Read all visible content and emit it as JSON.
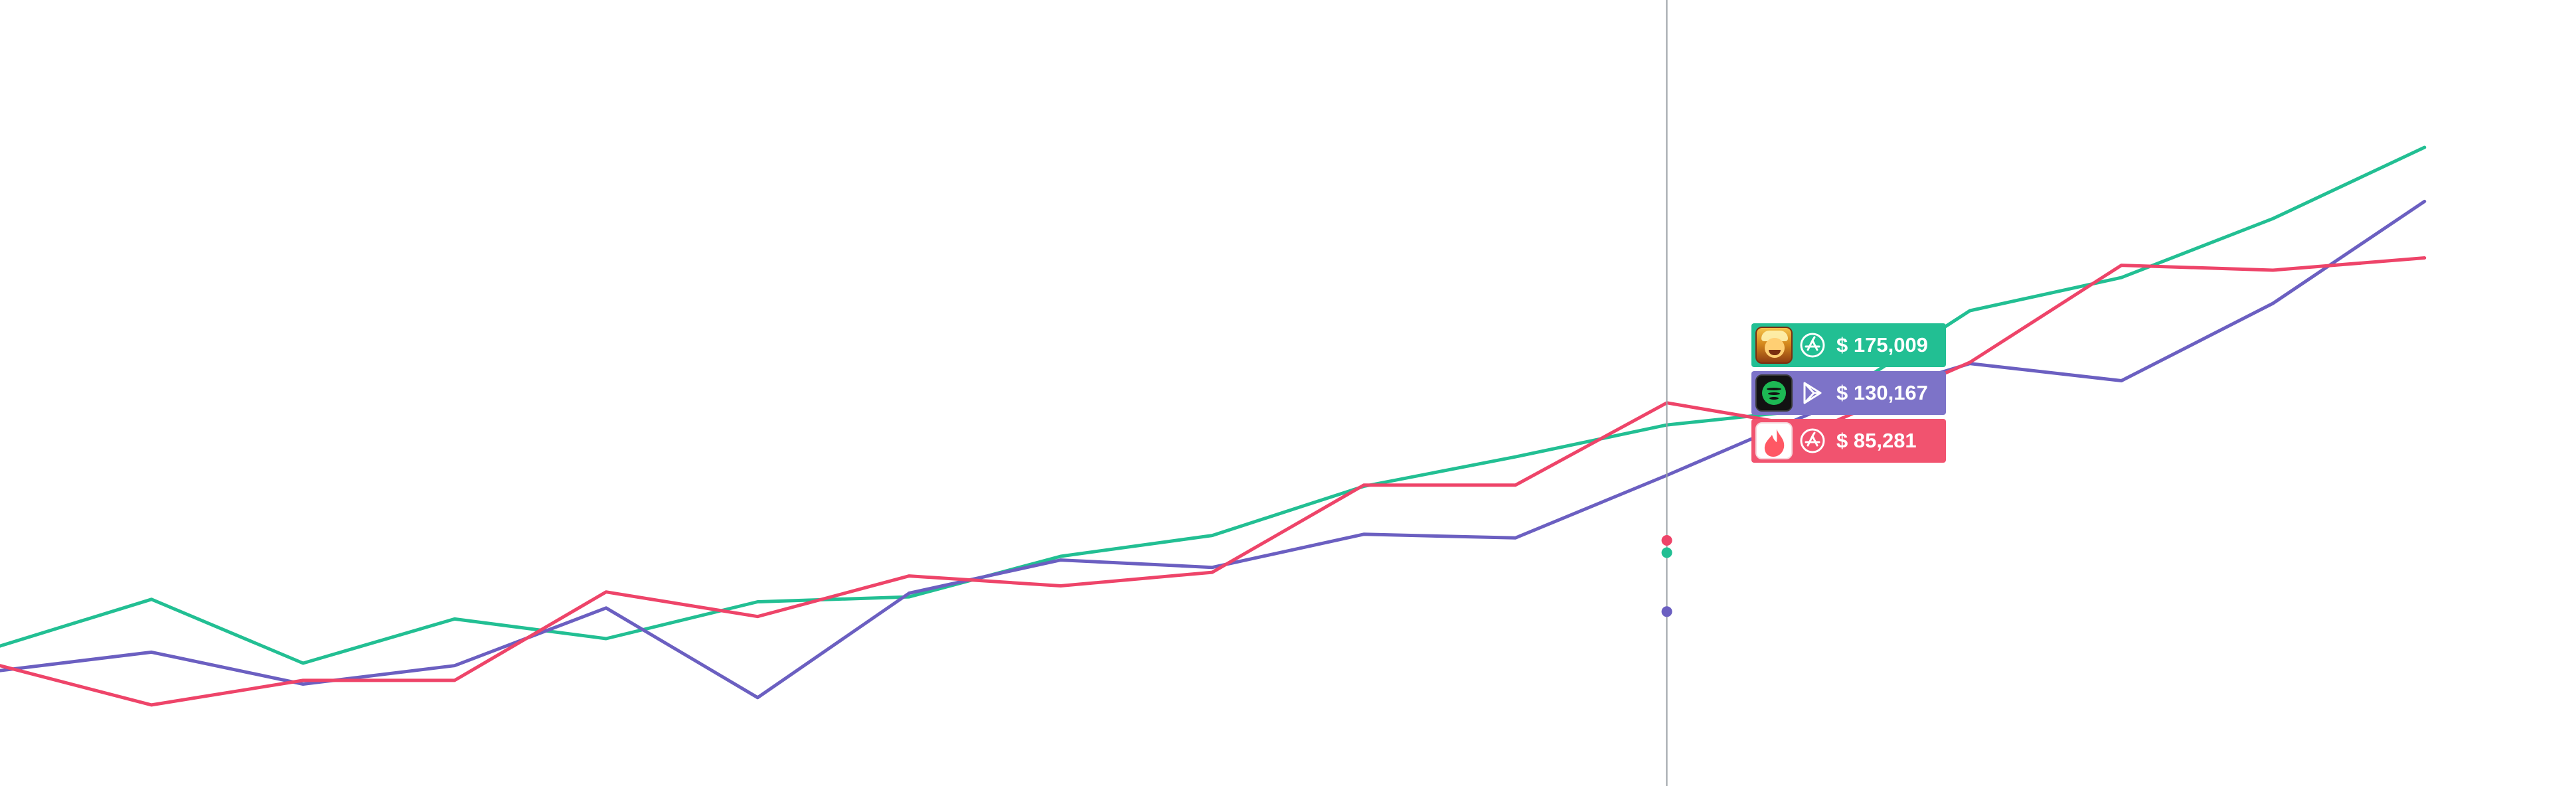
{
  "chart_data": {
    "type": "line",
    "x": [
      1,
      2,
      3,
      4,
      5,
      6,
      7,
      8,
      9,
      10,
      11,
      12,
      13,
      14,
      15,
      16,
      17
    ],
    "xlim": [
      0,
      17
    ],
    "ylim": [
      0,
      640
    ],
    "grid": false,
    "hover_index": 11,
    "hover_date_x": 11,
    "series": [
      {
        "color": "#22bf93",
        "values": [
          114,
          152,
          100,
          136,
          120,
          150,
          154,
          187,
          204,
          244,
          268,
          294,
          307,
          387,
          414,
          462,
          520
        ],
        "tooltip": "$ 175,009",
        "app_icon": "clash-app-icon",
        "store_icon": "app-store-icon"
      },
      {
        "color": "#6b5fc1",
        "values": [
          94,
          109,
          83,
          98,
          145,
          72,
          157,
          184,
          178,
          205,
          202,
          253,
          306,
          344,
          330,
          393,
          476
        ],
        "tooltip": "$ 130,167",
        "app_icon": "spotify-app-icon",
        "store_icon": "google-play-icon"
      },
      {
        "color": "#ee4469",
        "values": [
          98,
          66,
          86,
          86,
          158,
          138,
          171,
          163,
          174,
          245,
          245,
          312,
          291,
          345,
          424,
          420,
          430
        ],
        "tooltip": "$ 85,281",
        "app_icon": "tinder-app-icon",
        "store_icon": "app-store-icon"
      }
    ]
  },
  "tooltip": {
    "rows": [
      {
        "value": "$ 175,009",
        "color": "#22bf93",
        "app_icon": "clash-app-icon",
        "store_icon": "app-store-icon"
      },
      {
        "value": "$ 130,167",
        "color": "#7d73c8",
        "app_icon": "spotify-app-icon",
        "store_icon": "google-play-icon"
      },
      {
        "value": "$ 85,281",
        "color": "#f1536f",
        "app_icon": "tinder-app-icon",
        "store_icon": "app-store-icon"
      }
    ]
  }
}
